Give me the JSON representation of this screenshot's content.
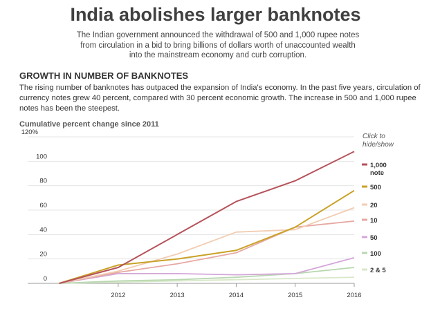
{
  "header": {
    "title": "India abolishes larger banknotes",
    "intro": "The Indian government announced the withdrawal of 500 and 1,000 rupee notes from circulation in a bid to bring billions of dollars worth of unaccounted wealth into the mainstream economy and curb corruption."
  },
  "section": {
    "heading": "GROWTH IN NUMBER OF BANKNOTES",
    "description": "The rising number of banknotes has outpaced the expansion of India's economy. In the past five years, circulation of currency notes grew 40 percent, compared with 30 percent economic growth. The increase in 500 and 1,000 rupee notes has been the steepest."
  },
  "legend_hint": [
    "Click to",
    "hide/show"
  ],
  "chart_data": {
    "type": "line",
    "title": "Cumulative percent change since 2011",
    "x_ticks": [
      "2012",
      "2013",
      "2014",
      "2015",
      "2016"
    ],
    "y_ticks": [
      "0",
      "20",
      "40",
      "60",
      "80",
      "100",
      "120%"
    ],
    "ylim": [
      0,
      120
    ],
    "x": [
      2011.3,
      2012.3,
      2013.3,
      2014.3,
      2015.3,
      2016.3
    ],
    "grid": true,
    "legend_position": "right",
    "series": [
      {
        "name": "1,000 note",
        "label_lines": [
          "1,000",
          "note"
        ],
        "color": "#b5525a",
        "values": [
          0,
          13,
          40,
          67,
          84,
          108
        ]
      },
      {
        "name": "500",
        "label_lines": [
          "500"
        ],
        "color": "#c9a227",
        "values": [
          0,
          15,
          20,
          27,
          46,
          76
        ]
      },
      {
        "name": "20",
        "label_lines": [
          "20"
        ],
        "color": "#f2ccb0",
        "values": [
          0,
          10,
          24,
          42,
          44,
          62
        ]
      },
      {
        "name": "10",
        "label_lines": [
          "10"
        ],
        "color": "#e6a8a2",
        "values": [
          0,
          9,
          16,
          25,
          46,
          51
        ]
      },
      {
        "name": "50",
        "label_lines": [
          "50"
        ],
        "color": "#d4a6d9",
        "values": [
          0,
          8,
          8,
          7,
          8,
          21
        ]
      },
      {
        "name": "100",
        "label_lines": [
          "100"
        ],
        "color": "#b8d8b0",
        "values": [
          0,
          2,
          3,
          5,
          8,
          13
        ]
      },
      {
        "name": "2 & 5",
        "label_lines": [
          "2 & 5"
        ],
        "color": "#d8e8c8",
        "values": [
          0,
          1,
          2,
          3,
          4,
          5
        ]
      }
    ]
  }
}
